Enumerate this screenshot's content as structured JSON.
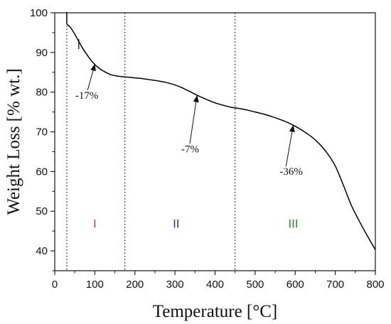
{
  "chart_data": {
    "type": "line",
    "xlabel": "Temperature [°C]",
    "ylabel": "Weight Loss [% wt.]",
    "xlim": [
      0,
      800
    ],
    "ylim": [
      35,
      100
    ],
    "x_ticks": [
      "0",
      "100",
      "200",
      "300",
      "400",
      "500",
      "600",
      "700",
      "800"
    ],
    "y_ticks": [
      "40",
      "50",
      "60",
      "70",
      "80",
      "90",
      "100"
    ],
    "grid": false,
    "legend": "none",
    "series": [
      {
        "color": "#000000",
        "x": [
          30,
          40,
          50,
          60,
          70,
          80,
          90,
          100,
          110,
          120,
          140,
          160,
          180,
          200,
          220,
          240,
          260,
          280,
          300,
          320,
          340,
          360,
          380,
          400,
          420,
          440,
          460,
          480,
          500,
          520,
          540,
          560,
          580,
          600,
          620,
          640,
          660,
          680,
          700,
          720,
          740,
          760,
          780,
          800
        ],
        "y": [
          97.2,
          96.2,
          94.6,
          92.8,
          91.0,
          89.5,
          88.1,
          87.0,
          86.1,
          85.4,
          84.4,
          84.0,
          83.8,
          83.6,
          83.4,
          83.1,
          82.8,
          82.4,
          81.8,
          81.0,
          80.0,
          79.0,
          78.1,
          77.3,
          76.7,
          76.2,
          75.9,
          75.5,
          75.0,
          74.5,
          73.9,
          73.2,
          72.4,
          71.4,
          70.2,
          68.8,
          67.0,
          64.6,
          61.4,
          56.6,
          51.5,
          47.5,
          43.8,
          40.3
        ]
      }
    ],
    "dividers": [
      30,
      175,
      450
    ],
    "regions": [
      {
        "label": "I",
        "x": 100,
        "y": 45.8,
        "color": "#e8322a"
      },
      {
        "label": "II",
        "x": 303,
        "y": 45.8,
        "color": "#2b3fb3"
      },
      {
        "label": "III",
        "x": 595,
        "y": 45.8,
        "color": "#2a8a2a"
      }
    ],
    "annotations": [
      {
        "text": "-17%",
        "x": 80,
        "y": 78.3,
        "tip": [
          100,
          87.0
        ],
        "tail": [
          82,
          80.5
        ]
      },
      {
        "text": "-7%",
        "x": 338,
        "y": 64.8,
        "tip": [
          355,
          79.1
        ],
        "tail": [
          337,
          67.0
        ]
      },
      {
        "text": "-36%",
        "x": 590,
        "y": 59.2,
        "tip": [
          595,
          71.6
        ],
        "tail": [
          577,
          61.3
        ]
      }
    ]
  }
}
